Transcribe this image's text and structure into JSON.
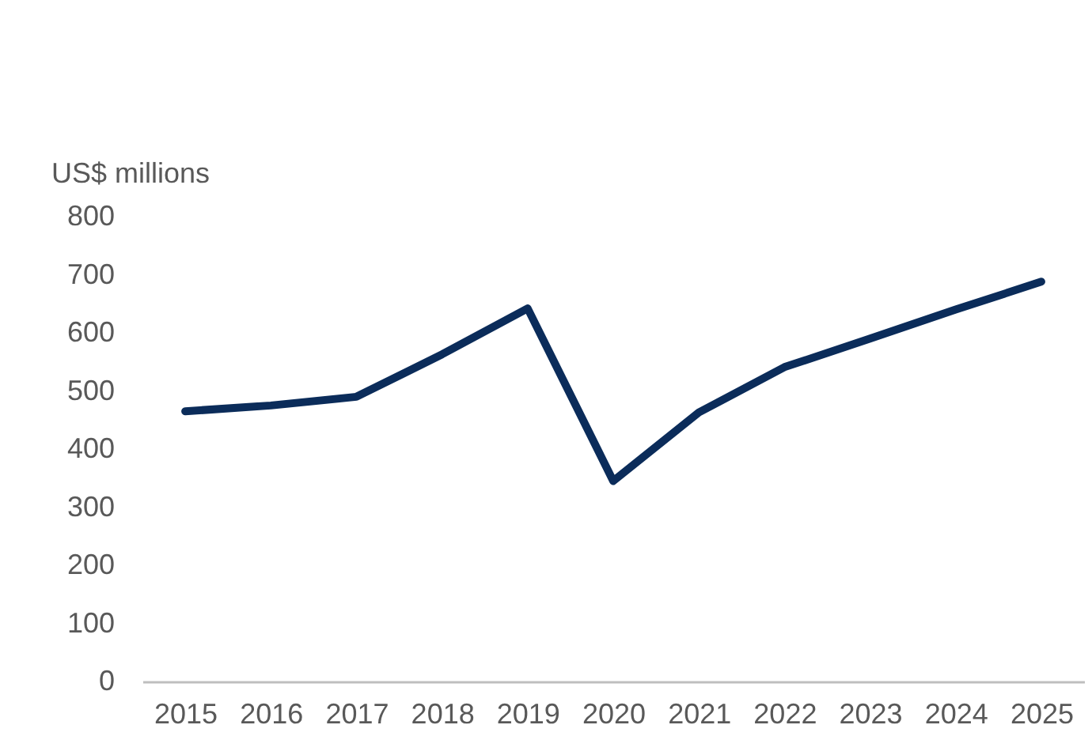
{
  "chart_data": {
    "type": "line",
    "ylabel": "US$ millions",
    "categories": [
      "2015",
      "2016",
      "2017",
      "2018",
      "2019",
      "2020",
      "2021",
      "2022",
      "2023",
      "2024",
      "2025"
    ],
    "series": [
      {
        "color": "#0b2c5a",
        "values": [
          465,
          475,
          490,
          563,
          642,
          345,
          463,
          541,
          590,
          640,
          688
        ]
      }
    ],
    "ylim": [
      0,
      800
    ],
    "yticks": [
      0,
      100,
      200,
      300,
      400,
      500,
      600,
      700,
      800
    ],
    "grid": false,
    "legend": false,
    "marker": "none",
    "line_style": "solid"
  }
}
